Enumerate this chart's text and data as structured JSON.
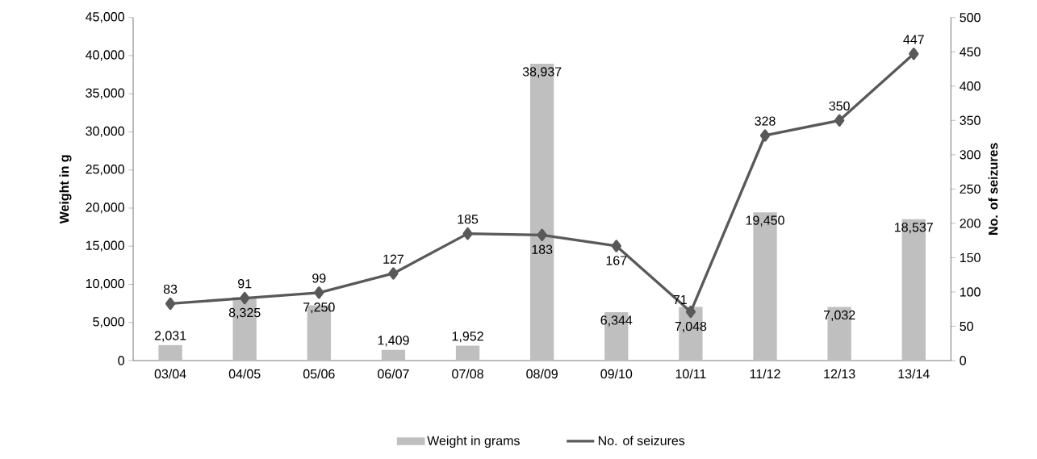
{
  "chart_data": {
    "type": "bar",
    "ylabel": "Weight in g",
    "y2label": "No. of seizures",
    "categories": [
      "03/04",
      "04/05",
      "05/06",
      "06/07",
      "07/08",
      "08/09",
      "09/10",
      "10/11",
      "11/12",
      "12/13",
      "13/14"
    ],
    "series": [
      {
        "name": "Weight in grams",
        "axis": "y",
        "color": "#bfbfbf",
        "values": [
          2031,
          8325,
          7250,
          1409,
          1952,
          38937,
          6344,
          7048,
          19450,
          7032,
          18537
        ],
        "value_labels": [
          "2,031",
          "8,325",
          "7,250",
          "1,409",
          "1,952",
          "38,937",
          "6,344",
          "7,048",
          "19,450",
          "7,032",
          "18,537"
        ]
      },
      {
        "name": "No. of seizures",
        "type": "line",
        "axis": "y2",
        "color": "#595959",
        "marker": "diamond",
        "values": [
          83,
          91,
          99,
          127,
          185,
          183,
          167,
          71,
          328,
          350,
          447
        ],
        "value_labels": [
          "83",
          "91",
          "99",
          "127",
          "185",
          "183",
          "167",
          "71",
          "328",
          "350",
          "447"
        ]
      }
    ],
    "ylim": [
      0,
      45000
    ],
    "yticks": [
      0,
      {
        "value": 5000,
        "label": "5,000"
      },
      {
        "value": 10000,
        "label": "10,000"
      },
      {
        "value": 15000,
        "label": "15,000"
      },
      {
        "value": 20000,
        "label": "20,000"
      },
      {
        "value": 25000,
        "label": "25,000"
      },
      {
        "value": 30000,
        "label": "30,000"
      },
      {
        "value": 35000,
        "label": "35,000"
      },
      {
        "value": 40000,
        "label": "40,000"
      },
      {
        "value": 45000,
        "label": "45,000"
      }
    ],
    "y2lim": [
      0,
      500
    ],
    "y2ticks": [
      0,
      50,
      100,
      150,
      200,
      250,
      300,
      350,
      400,
      450,
      500
    ],
    "legend": "bottom",
    "grid": false
  }
}
